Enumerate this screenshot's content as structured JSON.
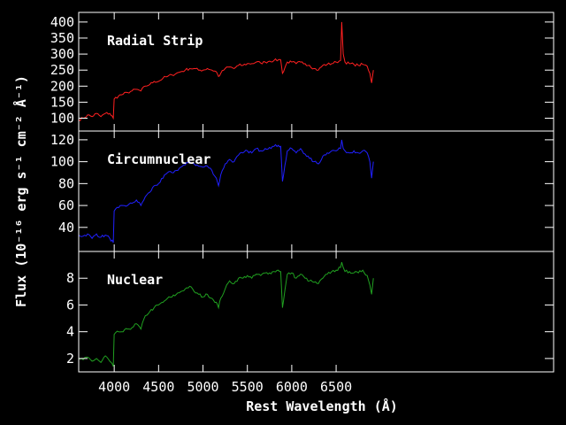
{
  "chart_data": {
    "type": "line",
    "xlabel": "Rest Wavelength (Å)",
    "ylabel": "Flux (10⁻¹⁶ erg s⁻¹ cm⁻² Å⁻¹)",
    "xlim": [
      3600,
      8950
    ],
    "x_ticks": [
      4000,
      4500,
      5000,
      5500,
      6000,
      6500
    ],
    "grid": false,
    "panels": [
      {
        "name": "Radial Strip",
        "color": "#ff2020",
        "ylim": [
          60,
          430
        ],
        "y_ticks": [
          100,
          150,
          200,
          250,
          300,
          350,
          400
        ],
        "x": [
          3600,
          3650,
          3700,
          3750,
          3800,
          3850,
          3900,
          3950,
          3990,
          4000,
          4050,
          4100,
          4150,
          4200,
          4250,
          4300,
          4350,
          4400,
          4450,
          4500,
          4550,
          4600,
          4650,
          4700,
          4750,
          4800,
          4850,
          4900,
          4950,
          5000,
          5050,
          5100,
          5150,
          5175,
          5200,
          5250,
          5300,
          5350,
          5400,
          5450,
          5500,
          5550,
          5600,
          5650,
          5700,
          5750,
          5800,
          5850,
          5875,
          5895,
          5950,
          6000,
          6050,
          6100,
          6150,
          6200,
          6250,
          6300,
          6350,
          6400,
          6450,
          6500,
          6550,
          6563,
          6580,
          6600,
          6650,
          6700,
          6750,
          6800,
          6850,
          6880,
          6900,
          6920
        ],
        "y": [
          95,
          100,
          110,
          105,
          115,
          105,
          115,
          115,
          100,
          160,
          170,
          175,
          180,
          185,
          190,
          185,
          200,
          205,
          215,
          215,
          225,
          230,
          235,
          240,
          245,
          250,
          255,
          255,
          250,
          250,
          255,
          250,
          245,
          230,
          240,
          255,
          260,
          255,
          265,
          265,
          270,
          270,
          275,
          272,
          275,
          278,
          280,
          282,
          282,
          240,
          275,
          275,
          270,
          275,
          270,
          265,
          255,
          250,
          265,
          268,
          270,
          275,
          280,
          400,
          300,
          275,
          270,
          268,
          265,
          268,
          262,
          240,
          210,
          250
        ]
      },
      {
        "name": "Circumnuclear",
        "color": "#2020ff",
        "ylim": [
          18,
          128
        ],
        "y_ticks": [
          40,
          60,
          80,
          100,
          120
        ],
        "x": [
          3600,
          3650,
          3700,
          3750,
          3800,
          3850,
          3900,
          3950,
          3990,
          4000,
          4050,
          4100,
          4150,
          4200,
          4250,
          4300,
          4350,
          4400,
          4450,
          4500,
          4550,
          4600,
          4650,
          4700,
          4750,
          4800,
          4850,
          4900,
          4950,
          5000,
          5050,
          5100,
          5150,
          5175,
          5200,
          5250,
          5300,
          5350,
          5400,
          5450,
          5500,
          5550,
          5600,
          5650,
          5700,
          5750,
          5800,
          5850,
          5875,
          5895,
          5950,
          6000,
          6050,
          6100,
          6150,
          6200,
          6250,
          6300,
          6350,
          6400,
          6450,
          6500,
          6550,
          6563,
          6580,
          6600,
          6650,
          6700,
          6750,
          6800,
          6850,
          6880,
          6900,
          6920
        ],
        "y": [
          33,
          32,
          34,
          30,
          34,
          31,
          33,
          30,
          26,
          55,
          58,
          60,
          60,
          62,
          65,
          60,
          68,
          72,
          78,
          80,
          85,
          90,
          90,
          92,
          95,
          97,
          100,
          98,
          96,
          95,
          96,
          92,
          85,
          78,
          88,
          98,
          102,
          100,
          106,
          108,
          110,
          108,
          112,
          110,
          112,
          113,
          114,
          115,
          114,
          82,
          110,
          112,
          108,
          112,
          107,
          103,
          100,
          98,
          105,
          108,
          110,
          110,
          112,
          120,
          112,
          110,
          108,
          110,
          108,
          110,
          108,
          100,
          85,
          100
        ]
      },
      {
        "name": "Nuclear",
        "color": "#20a020",
        "ylim": [
          1,
          10
        ],
        "y_ticks": [
          2,
          4,
          6,
          8
        ],
        "x": [
          3600,
          3650,
          3700,
          3750,
          3800,
          3850,
          3900,
          3950,
          3990,
          4000,
          4050,
          4100,
          4150,
          4200,
          4250,
          4300,
          4350,
          4400,
          4450,
          4500,
          4550,
          4600,
          4650,
          4700,
          4750,
          4800,
          4850,
          4900,
          4950,
          5000,
          5050,
          5100,
          5150,
          5175,
          5200,
          5250,
          5300,
          5350,
          5400,
          5450,
          5500,
          5550,
          5600,
          5650,
          5700,
          5750,
          5800,
          5850,
          5875,
          5895,
          5950,
          6000,
          6050,
          6100,
          6150,
          6200,
          6250,
          6300,
          6350,
          6400,
          6450,
          6500,
          6550,
          6563,
          6580,
          6600,
          6650,
          6700,
          6750,
          6800,
          6850,
          6880,
          6900,
          6920
        ],
        "y": [
          2.0,
          1.9,
          2.1,
          1.8,
          2.0,
          1.7,
          2.2,
          1.8,
          1.4,
          3.8,
          4.0,
          4.0,
          4.2,
          4.3,
          4.6,
          4.2,
          5.2,
          5.5,
          5.8,
          6.0,
          6.2,
          6.5,
          6.6,
          6.8,
          7.0,
          7.2,
          7.4,
          7.0,
          6.8,
          6.6,
          6.8,
          6.5,
          6.2,
          5.8,
          6.5,
          7.2,
          7.8,
          7.6,
          8.0,
          8.0,
          8.2,
          8.0,
          8.3,
          8.2,
          8.4,
          8.4,
          8.5,
          8.6,
          8.5,
          5.8,
          8.3,
          8.4,
          8.0,
          8.3,
          8.0,
          7.8,
          7.7,
          7.6,
          8.0,
          8.3,
          8.5,
          8.6,
          8.8,
          9.2,
          8.8,
          8.5,
          8.5,
          8.4,
          8.4,
          8.6,
          8.2,
          7.5,
          6.8,
          8.0
        ]
      }
    ]
  }
}
